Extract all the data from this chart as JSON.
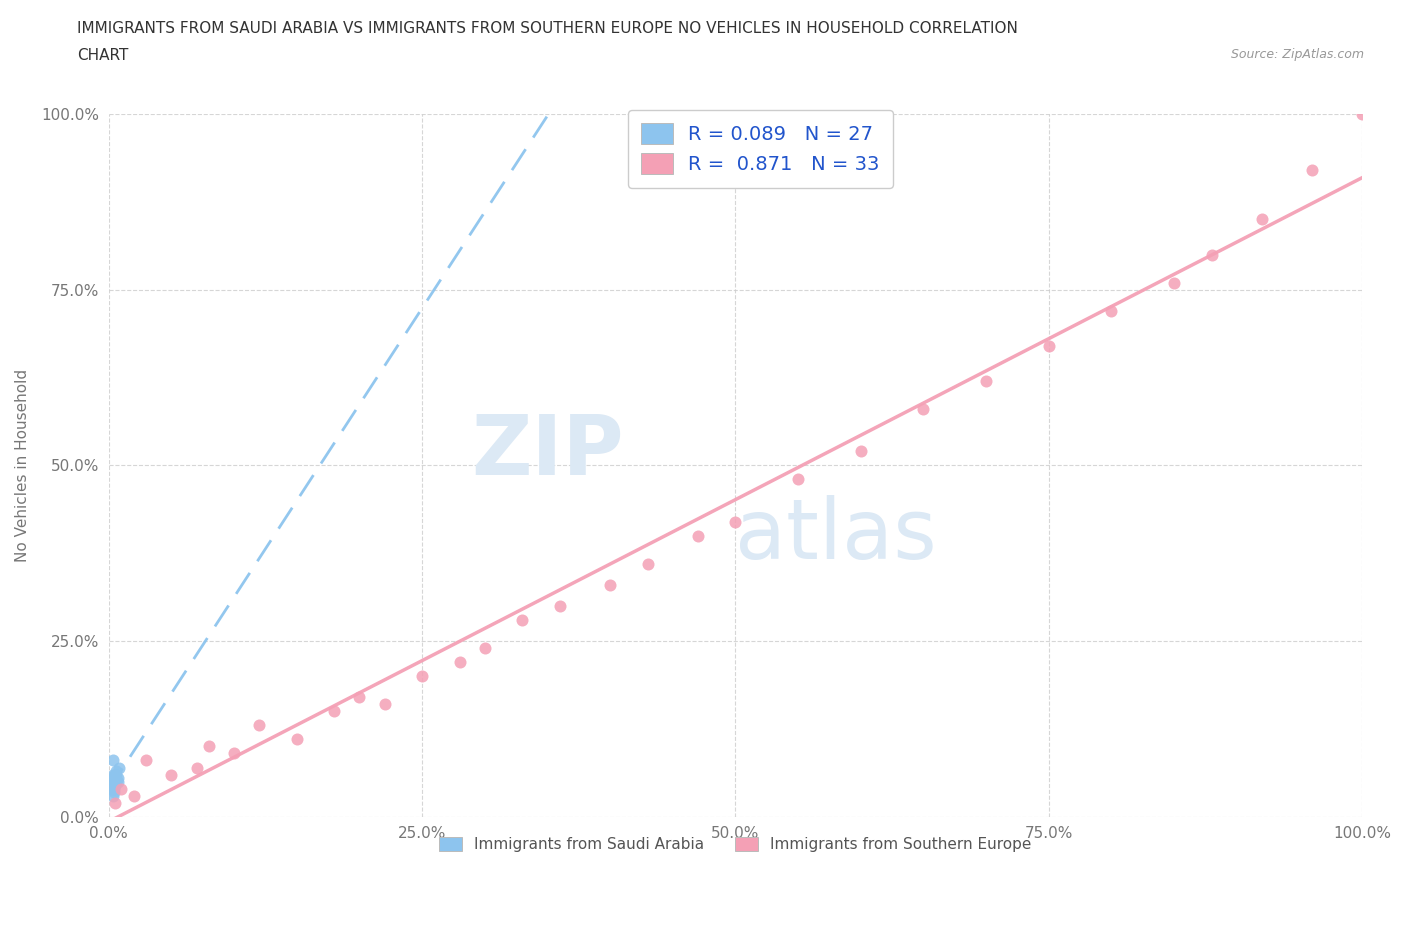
{
  "title_line1": "IMMIGRANTS FROM SAUDI ARABIA VS IMMIGRANTS FROM SOUTHERN EUROPE NO VEHICLES IN HOUSEHOLD CORRELATION",
  "title_line2": "CHART",
  "source": "Source: ZipAtlas.com",
  "ylabel": "No Vehicles in Household",
  "legend_label1": "Immigrants from Saudi Arabia",
  "legend_label2": "Immigrants from Southern Europe",
  "R1": 0.089,
  "N1": 27,
  "R2": 0.871,
  "N2": 33,
  "color1": "#8DC4EE",
  "color2": "#F4A0B5",
  "background_color": "#ffffff",
  "grid_color": "#cccccc",
  "tick_color": "#777777",
  "title_color": "#333333",
  "source_color": "#999999",
  "watermark_color": "#dce9f5",
  "legend_text_color": "#2255cc",
  "bottom_legend_color": "#555555",
  "saudi_x": [
    0.3,
    0.5,
    0.2,
    0.8,
    0.4,
    0.6,
    0.3,
    0.7,
    0.4,
    0.5,
    0.6,
    0.3,
    0.4,
    0.2,
    0.5,
    0.3,
    0.6,
    0.4,
    0.5,
    0.3,
    0.7,
    0.4,
    0.5,
    0.3,
    0.6,
    0.4,
    0.5
  ],
  "saudi_y": [
    5.0,
    6.0,
    4.0,
    7.0,
    5.5,
    6.5,
    8.0,
    5.0,
    4.5,
    5.5,
    6.0,
    4.0,
    3.5,
    5.0,
    4.5,
    6.0,
    5.5,
    4.0,
    5.0,
    3.0,
    5.5,
    4.5,
    6.0,
    4.0,
    5.0,
    5.5,
    4.5
  ],
  "seurope_x": [
    0.5,
    1.0,
    2.0,
    3.0,
    5.0,
    7.0,
    8.0,
    10.0,
    12.0,
    15.0,
    18.0,
    20.0,
    22.0,
    25.0,
    28.0,
    30.0,
    33.0,
    36.0,
    40.0,
    43.0,
    47.0,
    50.0,
    55.0,
    60.0,
    65.0,
    70.0,
    75.0,
    80.0,
    85.0,
    88.0,
    92.0,
    96.0,
    100.0
  ],
  "seurope_y": [
    2.0,
    4.0,
    3.0,
    8.0,
    6.0,
    7.0,
    10.0,
    9.0,
    13.0,
    11.0,
    15.0,
    17.0,
    16.0,
    20.0,
    22.0,
    24.0,
    28.0,
    30.0,
    33.0,
    36.0,
    40.0,
    42.0,
    48.0,
    52.0,
    58.0,
    62.0,
    67.0,
    72.0,
    76.0,
    80.0,
    85.0,
    92.0,
    100.0
  ],
  "xmin": 0,
  "xmax": 100,
  "ymin": 0,
  "ymax": 100,
  "xticks": [
    0,
    25,
    50,
    75,
    100
  ],
  "yticks": [
    0,
    25,
    50,
    75,
    100
  ],
  "xticklabels": [
    "0.0%",
    "25.0%",
    "50.0%",
    "75.0%",
    "100.0%"
  ],
  "yticklabels": [
    "0.0%",
    "25.0%",
    "50.0%",
    "75.0%",
    "100.0%"
  ]
}
